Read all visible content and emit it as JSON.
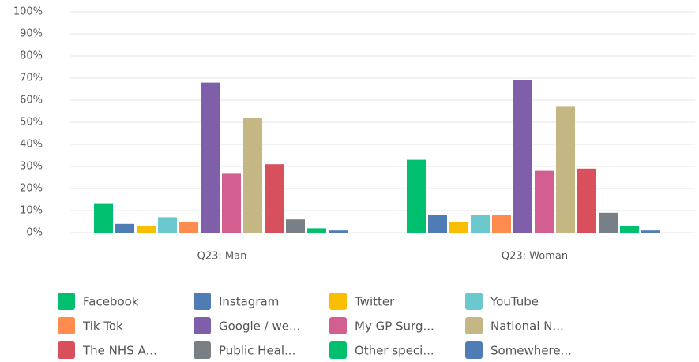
{
  "chart_data": {
    "type": "bar",
    "categories": [
      "Q23: Man",
      "Q23: Woman"
    ],
    "ylim": [
      0,
      100
    ],
    "yticks": [
      {
        "value": 0,
        "label": "0%"
      },
      {
        "value": 10,
        "label": "10%"
      },
      {
        "value": 20,
        "label": "20%"
      },
      {
        "value": 30,
        "label": "30%"
      },
      {
        "value": 40,
        "label": "40%"
      },
      {
        "value": 50,
        "label": "50%"
      },
      {
        "value": 60,
        "label": "60%"
      },
      {
        "value": 70,
        "label": "70%"
      },
      {
        "value": 80,
        "label": "80%"
      },
      {
        "value": 90,
        "label": "90%"
      },
      {
        "value": 100,
        "label": "100%"
      }
    ],
    "grid": true,
    "legend": "bottom",
    "series": [
      {
        "name": "Facebook",
        "color": "#00bf6f",
        "values": [
          13,
          33
        ]
      },
      {
        "name": "Instagram",
        "color": "#507cb6",
        "values": [
          4,
          8
        ]
      },
      {
        "name": "Twitter",
        "color": "#f9be00",
        "values": [
          3,
          5
        ]
      },
      {
        "name": "YouTube",
        "color": "#6bc8cd",
        "values": [
          7,
          8
        ]
      },
      {
        "name": "Tik Tok",
        "color": "#ff8b4f",
        "values": [
          5,
          8
        ]
      },
      {
        "name": "Google / we...",
        "color": "#7f5fa9",
        "values": [
          68,
          69
        ]
      },
      {
        "name": "My GP Surg...",
        "color": "#d25f90",
        "values": [
          27,
          28
        ]
      },
      {
        "name": "National N...",
        "color": "#c5b784",
        "values": [
          52,
          57
        ]
      },
      {
        "name": "The NHS A...",
        "color": "#d9505d",
        "values": [
          31,
          29
        ]
      },
      {
        "name": "Public Heal...",
        "color": "#787f85",
        "values": [
          6,
          9
        ]
      },
      {
        "name": "Other speci...",
        "color": "#00bf6f",
        "values": [
          2,
          3
        ]
      },
      {
        "name": "Somewhere...",
        "color": "#507cb6",
        "values": [
          1,
          1
        ]
      }
    ]
  }
}
